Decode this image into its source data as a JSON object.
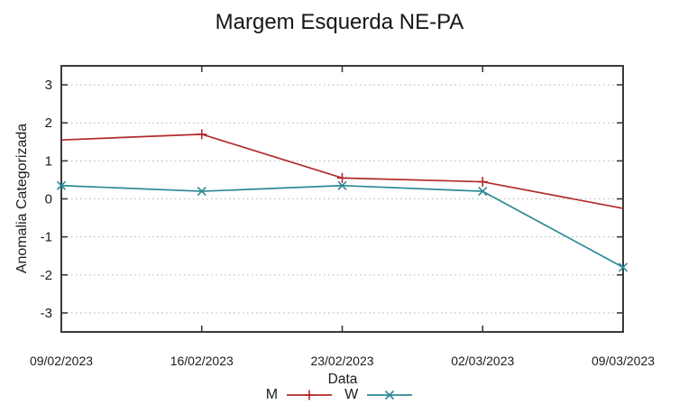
{
  "chart_data": {
    "type": "line",
    "title": "Margem Esquerda NE-PA",
    "xlabel": "Data",
    "ylabel": "Anomalia Categorizada",
    "categories": [
      "09/02/2023",
      "16/02/2023",
      "23/02/2023",
      "02/03/2023",
      "09/03/2023"
    ],
    "series": [
      {
        "name": "M",
        "color": "#b22929",
        "marker": "plus",
        "values": [
          1.55,
          1.7,
          0.55,
          0.45,
          -0.25
        ],
        "marker_indices": [
          1,
          2,
          3
        ]
      },
      {
        "name": "W",
        "color": "#2b8a93",
        "marker": "cross",
        "values": [
          0.35,
          0.2,
          0.35,
          0.2,
          -1.8
        ],
        "marker_indices": [
          0,
          1,
          2,
          3,
          4
        ]
      }
    ],
    "ylim": [
      -3.5,
      3.5
    ],
    "yticks": [
      -3,
      -2,
      -1,
      0,
      1,
      2,
      3
    ],
    "grid": "horizontal-dotted",
    "legend_position": "bottom-center",
    "colors": {
      "axis": "#3a3a3a",
      "grid": "#b8b8b8",
      "text": "#1c1c1c",
      "background": "#ffffff"
    }
  }
}
